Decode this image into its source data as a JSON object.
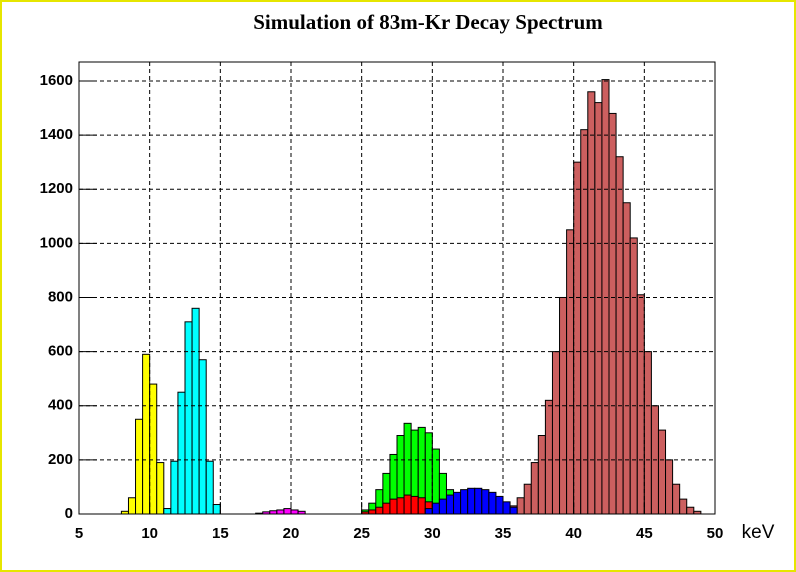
{
  "chart_data": {
    "type": "histogram",
    "title": "Simulation of 83m-Kr Decay Spectrum",
    "xlabel": "keV",
    "xlim": [
      5,
      50
    ],
    "xticks": [
      5,
      10,
      15,
      20,
      25,
      30,
      35,
      40,
      45,
      50
    ],
    "ylim": [
      0,
      1670
    ],
    "yticks": [
      0,
      200,
      400,
      600,
      800,
      1000,
      1200,
      1400,
      1600
    ],
    "grid": true,
    "series": [
      {
        "color": "#cc5f5f",
        "bins": [
          35,
          35.5,
          36,
          36.5,
          37,
          37.5,
          38,
          38.5,
          39,
          39.5,
          40,
          40.5,
          41,
          41.5,
          42,
          42.5,
          43,
          43.5,
          44,
          44.5,
          45,
          45.5,
          46,
          46.5,
          47,
          47.5,
          48,
          48.5,
          49
        ],
        "values": [
          15,
          30,
          60,
          110,
          190,
          290,
          420,
          600,
          800,
          1050,
          1300,
          1420,
          1560,
          1520,
          1605,
          1480,
          1320,
          1150,
          1020,
          810,
          600,
          400,
          310,
          200,
          110,
          55,
          25,
          10
        ]
      },
      {
        "color": "#00ff00",
        "bins": [
          25,
          25.5,
          26,
          26.5,
          27,
          27.5,
          28,
          28.5,
          29,
          29.5,
          30,
          30.5,
          31,
          31.5,
          32,
          32.5
        ],
        "values": [
          15,
          40,
          90,
          150,
          220,
          290,
          335,
          310,
          320,
          300,
          240,
          150,
          90,
          50,
          25
        ]
      },
      {
        "color": "#ff0000",
        "bins": [
          25,
          25.5,
          26,
          26.5,
          27,
          27.5,
          28,
          28.5,
          29,
          29.5,
          30
        ],
        "values": [
          8,
          15,
          25,
          40,
          55,
          60,
          70,
          65,
          60,
          45
        ]
      },
      {
        "color": "#0000ff",
        "bins": [
          29.5,
          30,
          30.5,
          31,
          31.5,
          32,
          32.5,
          33,
          33.5,
          34,
          34.5,
          35,
          35.5,
          36
        ],
        "values": [
          20,
          40,
          55,
          70,
          80,
          90,
          95,
          95,
          90,
          80,
          65,
          45,
          25
        ]
      },
      {
        "color": "#ff00ff",
        "bins": [
          17.5,
          18,
          18.5,
          19,
          19.5,
          20,
          20.5,
          21
        ],
        "values": [
          3,
          8,
          12,
          15,
          20,
          15,
          10
        ]
      },
      {
        "color": "#ffff00",
        "bins": [
          8,
          8.5,
          9,
          9.5,
          10,
          10.5,
          11,
          11.5
        ],
        "values": [
          10,
          60,
          350,
          590,
          480,
          190,
          20
        ]
      },
      {
        "color": "#00ffff",
        "bins": [
          11,
          11.5,
          12,
          12.5,
          13,
          13.5,
          14,
          14.5,
          15
        ],
        "values": [
          20,
          195,
          450,
          710,
          760,
          570,
          195,
          35
        ]
      }
    ]
  }
}
